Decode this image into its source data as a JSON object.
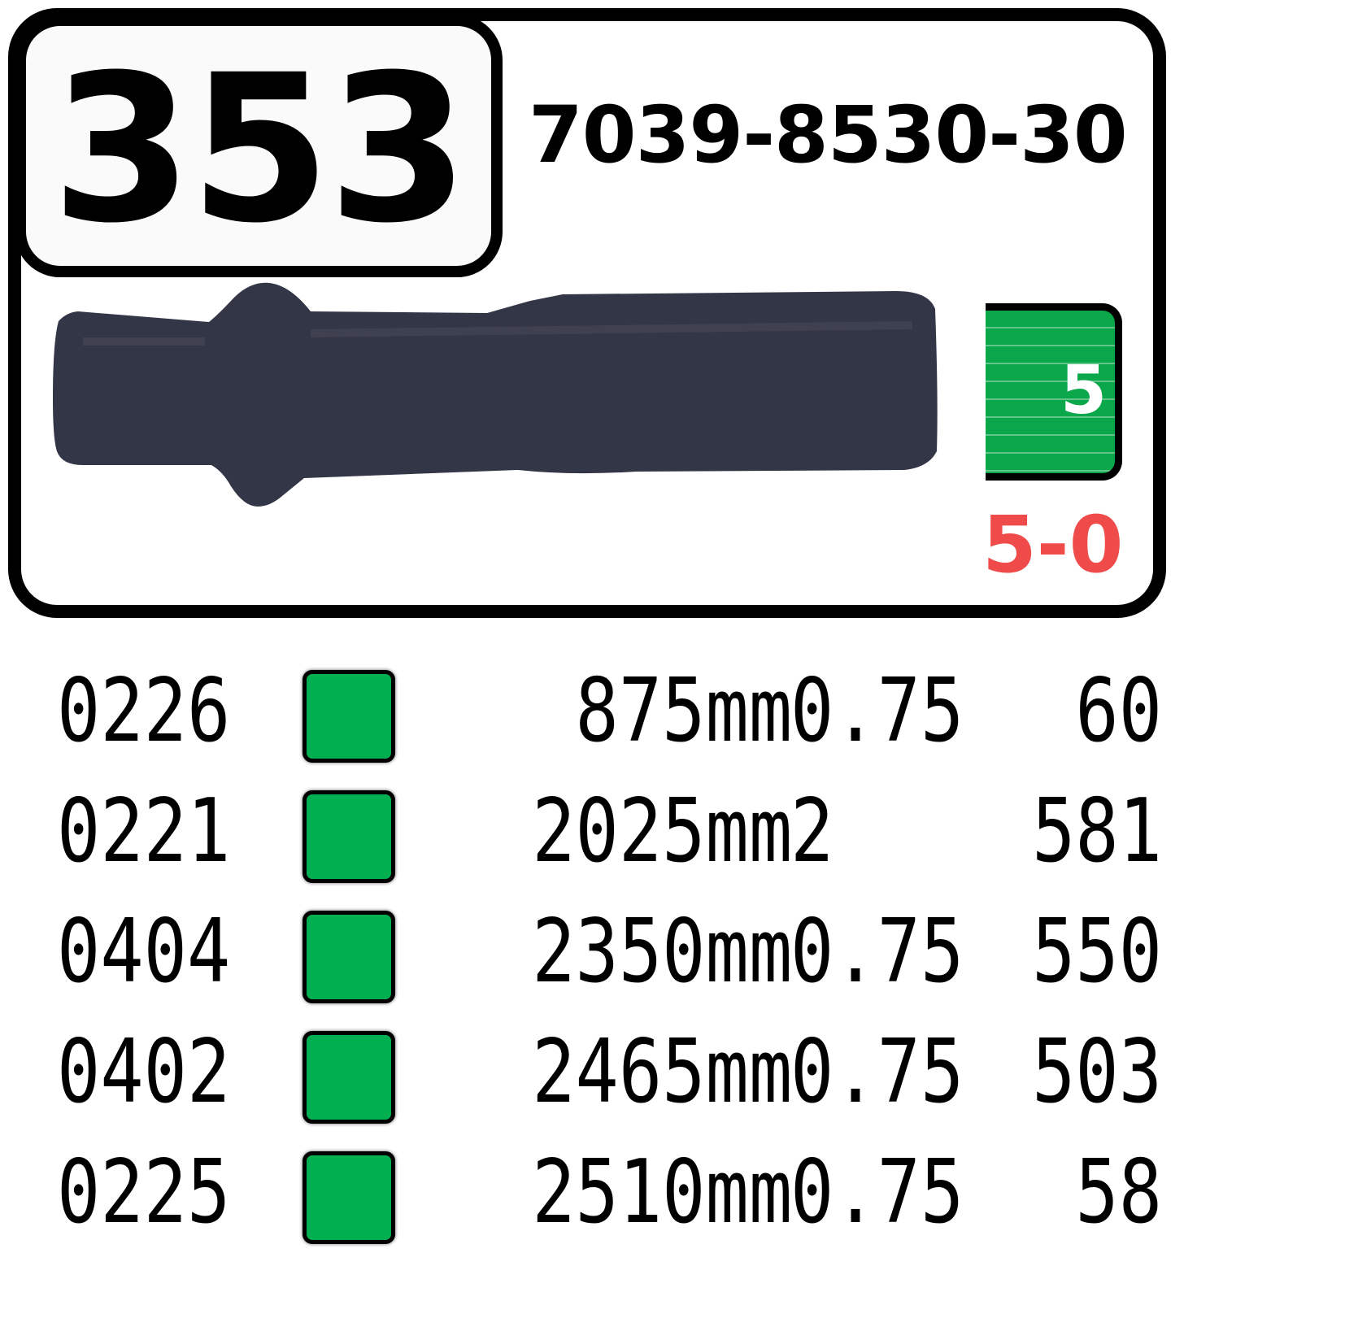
{
  "header": {
    "id": "353",
    "part_number": "7039-8530-30"
  },
  "connector": {
    "body_color": "#333647",
    "cavity_number": "5",
    "cavity_color": "#0aa84a",
    "code": "5-0",
    "code_color": "#f04b4b"
  },
  "wires": [
    {
      "code": "0226",
      "color": "#00b050",
      "length": "875mm",
      "gauge": "0.75",
      "number": "60"
    },
    {
      "code": "0221",
      "color": "#00b050",
      "length": "2025mm",
      "gauge": "2",
      "number": "581"
    },
    {
      "code": "0404",
      "color": "#00b050",
      "length": "2350mm",
      "gauge": "0.75",
      "number": "550"
    },
    {
      "code": "0402",
      "color": "#00b050",
      "length": "2465mm",
      "gauge": "0.75",
      "number": "503"
    },
    {
      "code": "0225",
      "color": "#00b050",
      "length": "2510mm",
      "gauge": "0.75",
      "number": "58"
    }
  ]
}
